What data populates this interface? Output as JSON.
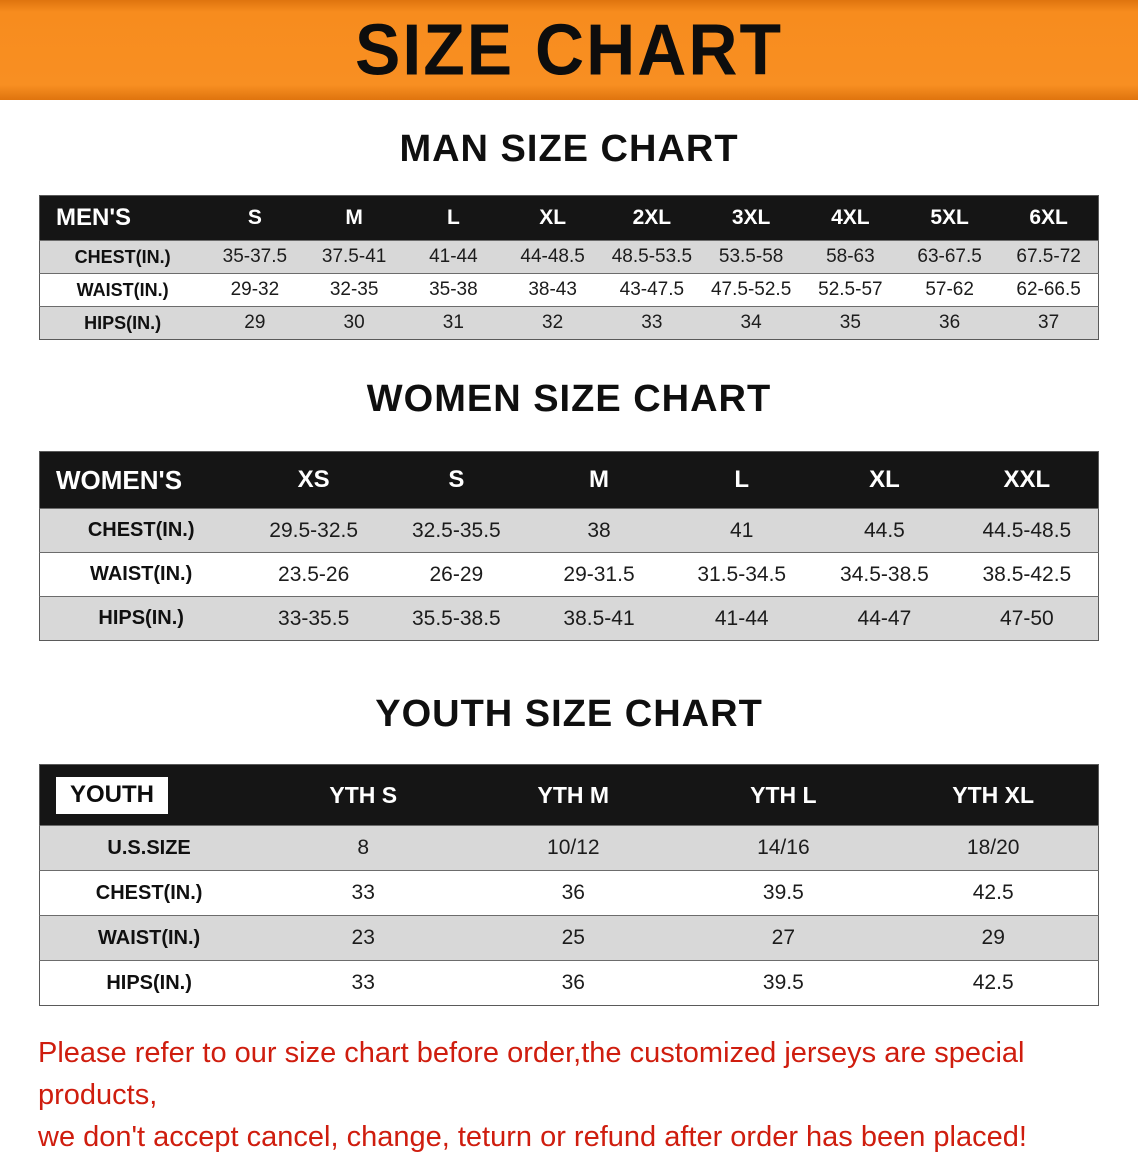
{
  "banner": {
    "title": "SIZE CHART",
    "bg_color": "#f6881f"
  },
  "colors": {
    "banner_orange": "#f6881f",
    "header_black": "#151515",
    "row_gray": "#d8d8d8",
    "footer_red": "#cf1d0e"
  },
  "men": {
    "heading": "MAN SIZE CHART",
    "table": {
      "label": "MEN'S",
      "columns": [
        "S",
        "M",
        "L",
        "XL",
        "2XL",
        "3XL",
        "4XL",
        "5XL",
        "6XL"
      ],
      "rows": [
        {
          "label": "CHEST(IN.)",
          "values": [
            "35-37.5",
            "37.5-41",
            "41-44",
            "44-48.5",
            "48.5-53.5",
            "53.5-58",
            "58-63",
            "63-67.5",
            "67.5-72"
          ]
        },
        {
          "label": "WAIST(IN.)",
          "values": [
            "29-32",
            "32-35",
            "35-38",
            "38-43",
            "43-47.5",
            "47.5-52.5",
            "52.5-57",
            "57-62",
            "62-66.5"
          ]
        },
        {
          "label": "HIPS(IN.)",
          "values": [
            "29",
            "30",
            "31",
            "32",
            "33",
            "34",
            "35",
            "36",
            "37"
          ]
        }
      ]
    }
  },
  "women": {
    "heading": "WOMEN SIZE CHART",
    "table": {
      "label": "WOMEN'S",
      "columns": [
        "XS",
        "S",
        "M",
        "L",
        "XL",
        "XXL"
      ],
      "rows": [
        {
          "label": "CHEST(IN.)",
          "values": [
            "29.5-32.5",
            "32.5-35.5",
            "38",
            "41",
            "44.5",
            "44.5-48.5"
          ]
        },
        {
          "label": "WAIST(IN.)",
          "values": [
            "23.5-26",
            "26-29",
            "29-31.5",
            "31.5-34.5",
            "34.5-38.5",
            "38.5-42.5"
          ]
        },
        {
          "label": "HIPS(IN.)",
          "values": [
            "33-35.5",
            "35.5-38.5",
            "38.5-41",
            "41-44",
            "44-47",
            "47-50"
          ]
        }
      ]
    }
  },
  "youth": {
    "heading": "YOUTH SIZE CHART",
    "table": {
      "label": "YOUTH",
      "label_boxed": true,
      "columns": [
        "YTH S",
        "YTH M",
        "YTH L",
        "YTH XL"
      ],
      "rows": [
        {
          "label": "U.S.SIZE",
          "values": [
            "8",
            "10/12",
            "14/16",
            "18/20"
          ]
        },
        {
          "label": "CHEST(IN.)",
          "values": [
            "33",
            "36",
            "39.5",
            "42.5"
          ]
        },
        {
          "label": "WAIST(IN.)",
          "values": [
            "23",
            "25",
            "27",
            "29"
          ]
        },
        {
          "label": "HIPS(IN.)",
          "values": [
            "33",
            "36",
            "39.5",
            "42.5"
          ]
        }
      ]
    }
  },
  "footer": {
    "line1": "Please refer to our size chart before order,the customized jerseys are special products,",
    "line2": "we don't accept cancel, change, teturn or refund after order has been placed!",
    "color": "#cf1d0e"
  }
}
